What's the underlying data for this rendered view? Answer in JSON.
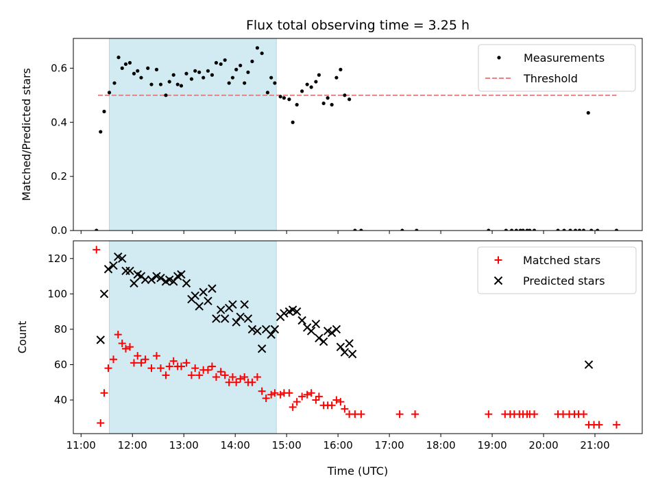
{
  "figure": {
    "title": "Flux total observing time = 3.25 h",
    "xlabel": "Time (UTC)",
    "x_ticks": [
      "11:00",
      "12:00",
      "13:00",
      "14:00",
      "15:00",
      "16:00",
      "17:00",
      "18:00",
      "19:00",
      "20:00",
      "21:00"
    ],
    "x_range_hours": [
      10.85,
      21.92
    ],
    "highlight_span_hours": [
      11.55,
      14.8
    ],
    "highlight_color": "#add8e6"
  },
  "chart_data": [
    {
      "type": "scatter",
      "ylabel": "Matched/Predicted stars",
      "ylim": [
        0,
        0.71
      ],
      "y_ticks": [
        "0.0",
        "0.2",
        "0.4",
        "0.6"
      ],
      "y_tick_values": [
        0,
        0.2,
        0.4,
        0.6
      ],
      "legend": {
        "placement": "top-right",
        "entries": [
          "Measurements",
          "Threshold"
        ]
      },
      "threshold": {
        "name": "Threshold",
        "value": 0.5,
        "x_range": [
          11.33,
          21.42
        ],
        "color": "#f08080",
        "style": "dashed"
      },
      "series": [
        {
          "name": "Measurements",
          "color": "#000000",
          "marker": "dot",
          "points": [
            [
              11.3,
              0.0
            ],
            [
              11.38,
              0.365
            ],
            [
              11.45,
              0.44
            ],
            [
              11.55,
              0.51
            ],
            [
              11.65,
              0.545
            ],
            [
              11.73,
              0.64
            ],
            [
              11.8,
              0.6
            ],
            [
              11.87,
              0.615
            ],
            [
              11.95,
              0.62
            ],
            [
              12.03,
              0.58
            ],
            [
              12.1,
              0.59
            ],
            [
              12.17,
              0.565
            ],
            [
              12.3,
              0.6
            ],
            [
              12.37,
              0.54
            ],
            [
              12.47,
              0.595
            ],
            [
              12.55,
              0.54
            ],
            [
              12.65,
              0.5
            ],
            [
              12.72,
              0.55
            ],
            [
              12.8,
              0.575
            ],
            [
              12.88,
              0.54
            ],
            [
              12.95,
              0.535
            ],
            [
              13.05,
              0.58
            ],
            [
              13.15,
              0.56
            ],
            [
              13.22,
              0.59
            ],
            [
              13.3,
              0.585
            ],
            [
              13.38,
              0.565
            ],
            [
              13.47,
              0.59
            ],
            [
              13.55,
              0.575
            ],
            [
              13.63,
              0.62
            ],
            [
              13.72,
              0.615
            ],
            [
              13.8,
              0.63
            ],
            [
              13.88,
              0.545
            ],
            [
              13.95,
              0.565
            ],
            [
              14.02,
              0.595
            ],
            [
              14.1,
              0.61
            ],
            [
              14.18,
              0.545
            ],
            [
              14.25,
              0.585
            ],
            [
              14.33,
              0.625
            ],
            [
              14.43,
              0.675
            ],
            [
              14.52,
              0.655
            ],
            [
              14.63,
              0.51
            ],
            [
              14.7,
              0.565
            ],
            [
              14.77,
              0.545
            ],
            [
              14.88,
              0.495
            ],
            [
              14.95,
              0.49
            ],
            [
              15.05,
              0.485
            ],
            [
              15.12,
              0.4
            ],
            [
              15.2,
              0.465
            ],
            [
              15.3,
              0.515
            ],
            [
              15.4,
              0.54
            ],
            [
              15.48,
              0.53
            ],
            [
              15.57,
              0.55
            ],
            [
              15.63,
              0.575
            ],
            [
              15.72,
              0.47
            ],
            [
              15.8,
              0.49
            ],
            [
              15.88,
              0.465
            ],
            [
              15.97,
              0.565
            ],
            [
              16.05,
              0.595
            ],
            [
              16.13,
              0.5
            ],
            [
              16.22,
              0.485
            ],
            [
              16.33,
              0.0
            ],
            [
              16.45,
              0.0
            ],
            [
              17.25,
              0.0
            ],
            [
              17.53,
              0.0
            ],
            [
              18.93,
              0.0
            ],
            [
              19.27,
              0.0
            ],
            [
              19.38,
              0.0
            ],
            [
              19.47,
              0.0
            ],
            [
              19.55,
              0.0
            ],
            [
              19.6,
              0.0
            ],
            [
              19.68,
              0.0
            ],
            [
              19.73,
              0.0
            ],
            [
              19.82,
              0.0
            ],
            [
              20.28,
              0.0
            ],
            [
              20.4,
              0.0
            ],
            [
              20.52,
              0.0
            ],
            [
              20.62,
              0.0
            ],
            [
              20.7,
              0.0
            ],
            [
              20.78,
              0.0
            ],
            [
              20.87,
              0.435
            ],
            [
              20.93,
              0.0
            ],
            [
              21.05,
              0.0
            ],
            [
              21.42,
              0.0
            ]
          ]
        }
      ]
    },
    {
      "type": "scatter",
      "ylabel": "Count",
      "ylim": [
        21,
        130
      ],
      "y_ticks": [
        "40",
        "60",
        "80",
        "100",
        "120"
      ],
      "y_tick_values": [
        40,
        60,
        80,
        100,
        120
      ],
      "legend": {
        "placement": "top-right",
        "entries": [
          "Matched stars",
          "Predicted stars"
        ]
      },
      "series": [
        {
          "name": "Matched stars",
          "color": "#ff0000",
          "marker": "plus",
          "points": [
            [
              11.3,
              125
            ],
            [
              11.38,
              27
            ],
            [
              11.45,
              44
            ],
            [
              11.53,
              58
            ],
            [
              11.63,
              63
            ],
            [
              11.72,
              77
            ],
            [
              11.8,
              72
            ],
            [
              11.87,
              69
            ],
            [
              11.95,
              70
            ],
            [
              12.03,
              61
            ],
            [
              12.1,
              65
            ],
            [
              12.17,
              61
            ],
            [
              12.25,
              63
            ],
            [
              12.37,
              58
            ],
            [
              12.47,
              65
            ],
            [
              12.55,
              58
            ],
            [
              12.65,
              54
            ],
            [
              12.72,
              59
            ],
            [
              12.8,
              62
            ],
            [
              12.88,
              59
            ],
            [
              12.95,
              59
            ],
            [
              13.05,
              61
            ],
            [
              13.15,
              54
            ],
            [
              13.22,
              58
            ],
            [
              13.3,
              54
            ],
            [
              13.38,
              57
            ],
            [
              13.47,
              57
            ],
            [
              13.55,
              59
            ],
            [
              13.63,
              53
            ],
            [
              13.72,
              56
            ],
            [
              13.8,
              54
            ],
            [
              13.88,
              50
            ],
            [
              13.95,
              53
            ],
            [
              14.02,
              50
            ],
            [
              14.1,
              52
            ],
            [
              14.18,
              53
            ],
            [
              14.25,
              50
            ],
            [
              14.33,
              50
            ],
            [
              14.43,
              53
            ],
            [
              14.52,
              45
            ],
            [
              14.6,
              41
            ],
            [
              14.7,
              43
            ],
            [
              14.77,
              44
            ],
            [
              14.88,
              43
            ],
            [
              14.95,
              44
            ],
            [
              15.05,
              44
            ],
            [
              15.12,
              36
            ],
            [
              15.2,
              39
            ],
            [
              15.3,
              42
            ],
            [
              15.4,
              43
            ],
            [
              15.48,
              44
            ],
            [
              15.57,
              40
            ],
            [
              15.63,
              42
            ],
            [
              15.72,
              37
            ],
            [
              15.8,
              37
            ],
            [
              15.88,
              37
            ],
            [
              15.97,
              40
            ],
            [
              16.05,
              39
            ],
            [
              16.13,
              35
            ],
            [
              16.22,
              32
            ],
            [
              16.33,
              32
            ],
            [
              16.45,
              32
            ],
            [
              17.2,
              32
            ],
            [
              17.5,
              32
            ],
            [
              18.93,
              32
            ],
            [
              19.25,
              32
            ],
            [
              19.35,
              32
            ],
            [
              19.43,
              32
            ],
            [
              19.53,
              32
            ],
            [
              19.6,
              32
            ],
            [
              19.68,
              32
            ],
            [
              19.73,
              32
            ],
            [
              19.82,
              32
            ],
            [
              20.28,
              32
            ],
            [
              20.38,
              32
            ],
            [
              20.5,
              32
            ],
            [
              20.6,
              32
            ],
            [
              20.68,
              32
            ],
            [
              20.78,
              32
            ],
            [
              20.88,
              26
            ],
            [
              20.98,
              26
            ],
            [
              21.08,
              26
            ],
            [
              21.42,
              26
            ]
          ]
        },
        {
          "name": "Predicted stars",
          "color": "#000000",
          "marker": "cross",
          "points": [
            [
              11.38,
              74
            ],
            [
              11.45,
              100
            ],
            [
              11.53,
              114
            ],
            [
              11.63,
              116
            ],
            [
              11.72,
              121
            ],
            [
              11.8,
              120
            ],
            [
              11.87,
              113
            ],
            [
              11.95,
              113
            ],
            [
              12.03,
              106
            ],
            [
              12.1,
              111
            ],
            [
              12.17,
              110
            ],
            [
              12.25,
              108
            ],
            [
              12.37,
              108
            ],
            [
              12.47,
              110
            ],
            [
              12.55,
              109
            ],
            [
              12.65,
              107
            ],
            [
              12.72,
              108
            ],
            [
              12.8,
              107
            ],
            [
              12.88,
              110
            ],
            [
              12.95,
              111
            ],
            [
              13.05,
              106
            ],
            [
              13.15,
              97
            ],
            [
              13.22,
              99
            ],
            [
              13.3,
              93
            ],
            [
              13.38,
              101
            ],
            [
              13.47,
              96
            ],
            [
              13.55,
              103
            ],
            [
              13.63,
              86
            ],
            [
              13.72,
              91
            ],
            [
              13.8,
              86
            ],
            [
              13.88,
              92
            ],
            [
              13.95,
              94
            ],
            [
              14.02,
              84
            ],
            [
              14.1,
              87
            ],
            [
              14.18,
              94
            ],
            [
              14.25,
              86
            ],
            [
              14.33,
              80
            ],
            [
              14.43,
              79
            ],
            [
              14.52,
              69
            ],
            [
              14.6,
              80
            ],
            [
              14.7,
              77
            ],
            [
              14.77,
              80
            ],
            [
              14.88,
              87
            ],
            [
              14.95,
              89
            ],
            [
              15.05,
              90
            ],
            [
              15.12,
              91
            ],
            [
              15.2,
              90
            ],
            [
              15.3,
              85
            ],
            [
              15.4,
              81
            ],
            [
              15.48,
              79
            ],
            [
              15.57,
              83
            ],
            [
              15.63,
              75
            ],
            [
              15.72,
              73
            ],
            [
              15.8,
              79
            ],
            [
              15.88,
              78
            ],
            [
              15.97,
              80
            ],
            [
              16.05,
              70
            ],
            [
              16.13,
              67
            ],
            [
              16.22,
              72
            ],
            [
              16.28,
              66
            ],
            [
              20.88,
              60
            ]
          ]
        }
      ]
    }
  ]
}
